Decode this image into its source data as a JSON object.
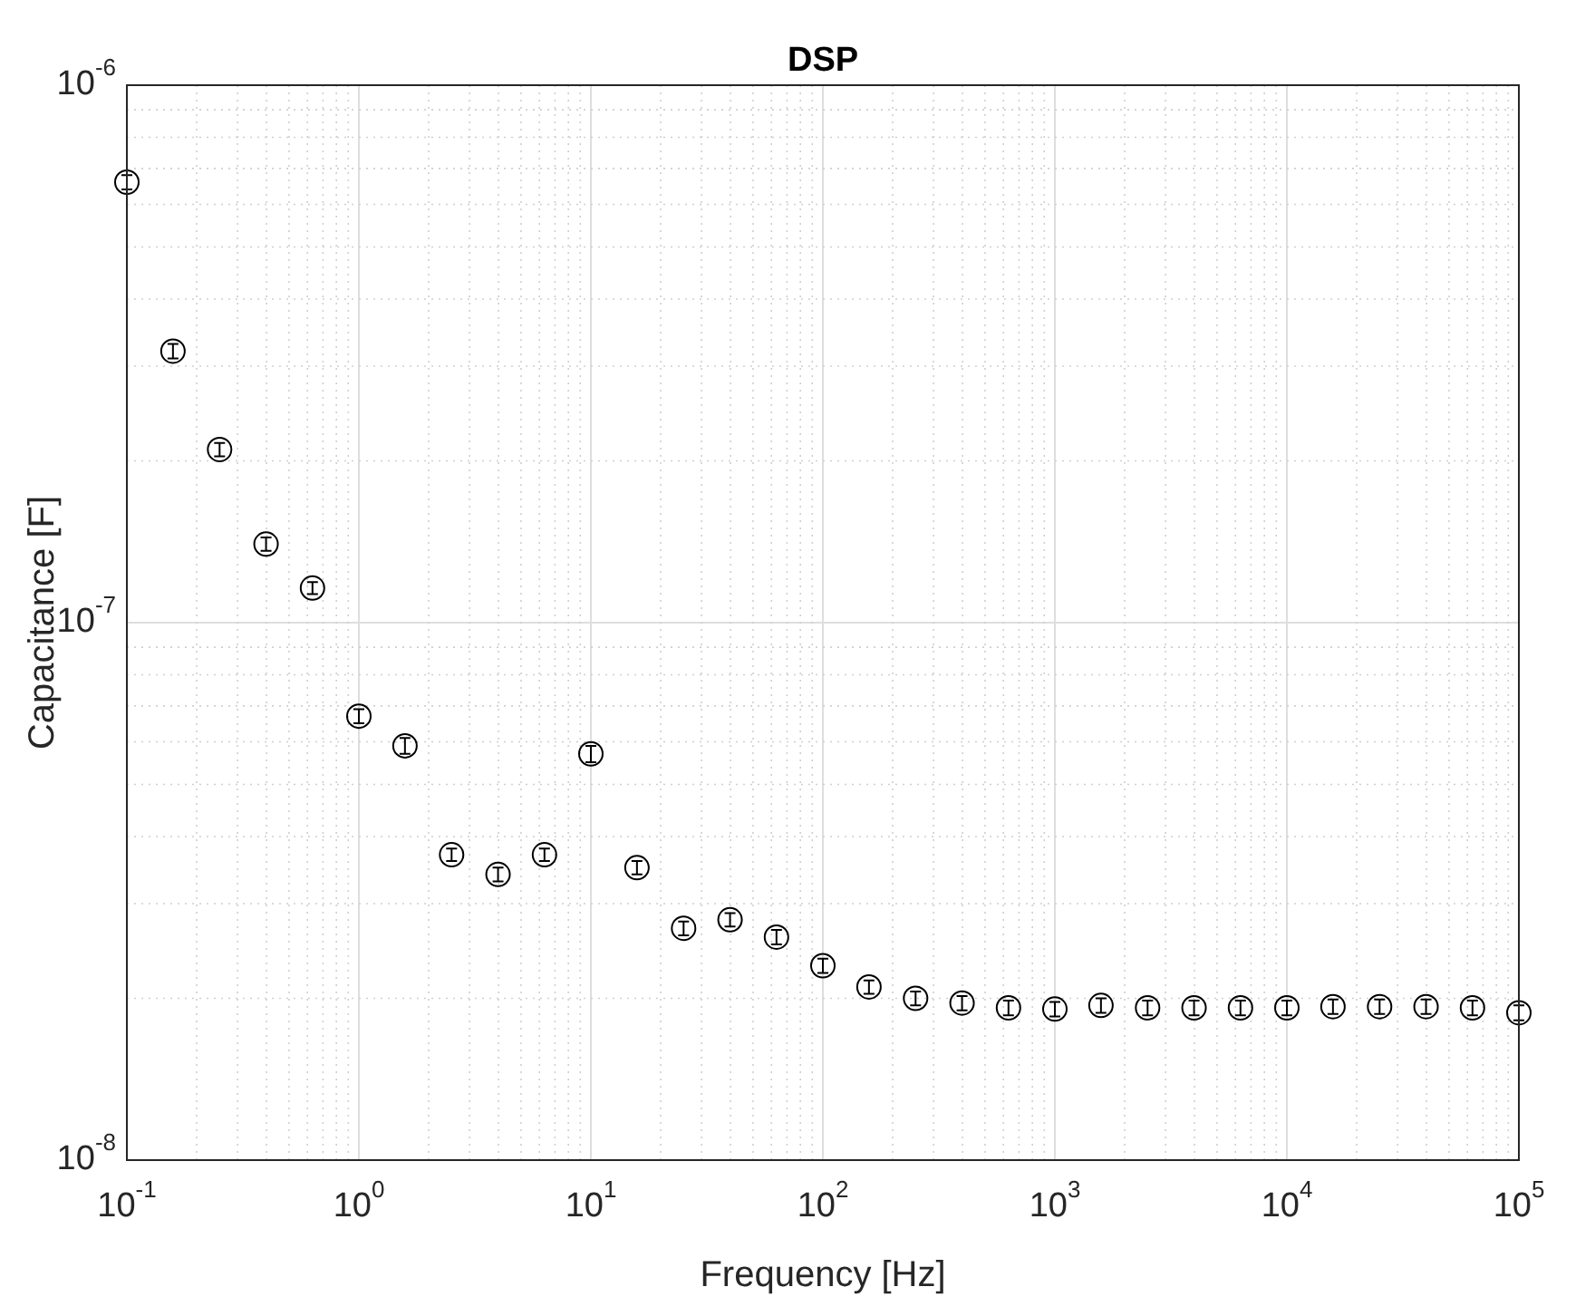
{
  "chart_data": {
    "type": "scatter",
    "title": "DSP",
    "xlabel": "Frequency [Hz]",
    "ylabel": "Capacitance [F]",
    "log": "xy",
    "grid": true,
    "marker": "circle",
    "legend": false,
    "x": [
      0.1,
      0.158,
      0.251,
      0.398,
      0.631,
      1,
      1.58,
      2.51,
      3.98,
      6.31,
      10,
      15.8,
      25.1,
      39.8,
      63.1,
      100,
      158,
      251,
      398,
      631,
      1000,
      1580,
      2510,
      3980,
      6310,
      10000,
      15800,
      25100,
      39800,
      63100,
      100000
    ],
    "series": [
      {
        "color": "#000000",
        "values": [
          6.6e-07,
          3.2e-07,
          2.1e-07,
          1.4e-07,
          1.16e-07,
          6.7e-08,
          5.9e-08,
          3.7e-08,
          3.4e-08,
          3.7e-08,
          5.7e-08,
          3.5e-08,
          2.7e-08,
          2.8e-08,
          2.6e-08,
          2.3e-08,
          2.1e-08,
          2e-08,
          1.96e-08,
          1.92e-08,
          1.91e-08,
          1.94e-08,
          1.92e-08,
          1.92e-08,
          1.92e-08,
          1.92e-08,
          1.93e-08,
          1.93e-08,
          1.93e-08,
          1.92e-08,
          1.88e-08
        ],
        "errors": [
          2e-08,
          1e-08,
          6e-09,
          4e-09,
          3e-09,
          2e-09,
          2e-09,
          1e-09,
          1e-09,
          1e-09,
          2e-09,
          1e-09,
          8e-10,
          8e-10,
          8e-10,
          7e-10,
          6e-10,
          6e-10,
          6e-10,
          6e-10,
          6e-10,
          6e-10,
          6e-10,
          6e-10,
          6e-10,
          6e-10,
          6e-10,
          6e-10,
          6e-10,
          6e-10,
          6e-10
        ]
      }
    ],
    "xlim": [
      0.1,
      100000
    ],
    "ylim": [
      1e-08,
      1e-06
    ],
    "xticks": [
      {
        "value": 0.1,
        "label": "10$^{-1}$"
      },
      {
        "value": 1,
        "label": "10$^{0}$"
      },
      {
        "value": 10,
        "label": "10$^{1}$"
      },
      {
        "value": 100,
        "label": "10$^{2}$"
      },
      {
        "value": 1000,
        "label": "10$^{3}$"
      },
      {
        "value": 10000,
        "label": "10$^{4}$"
      },
      {
        "value": 100000,
        "label": "10$^{5}$"
      }
    ],
    "yticks": [
      {
        "value": 1e-08,
        "label": "10$^{-8}$"
      },
      {
        "value": 1e-07,
        "label": "10$^{-7}$"
      },
      {
        "value": 1e-06,
        "label": "10$^{-6}$"
      }
    ]
  }
}
